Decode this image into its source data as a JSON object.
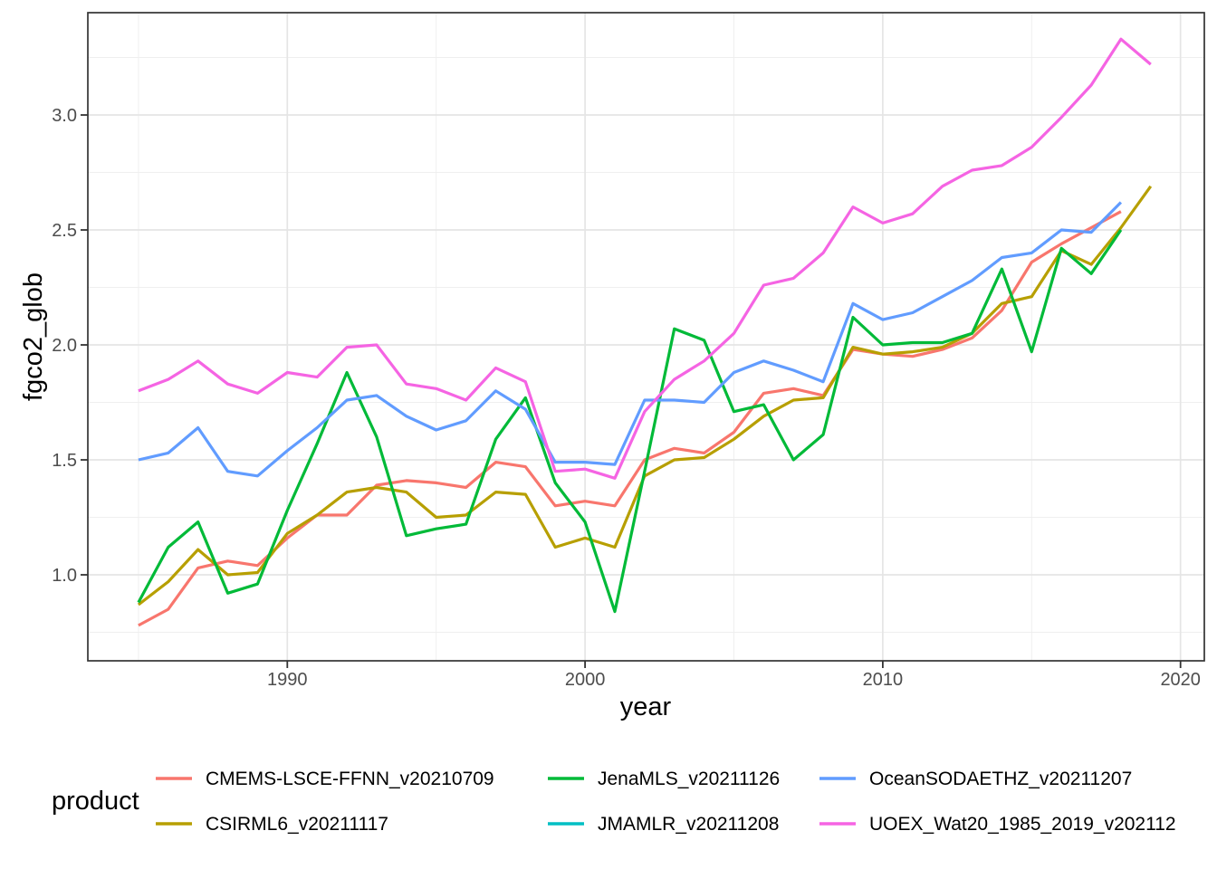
{
  "page": {
    "background": "#ffffff"
  },
  "legend": {
    "title": "product",
    "position": "bottom",
    "columns": 3
  },
  "chart_data": {
    "type": "line",
    "title": "",
    "xlabel": "year",
    "ylabel": "fgco2_glob",
    "x_range": [
      1983.3,
      2020.8
    ],
    "y_range": [
      0.626,
      3.445
    ],
    "x_major_ticks": [
      1990,
      2000,
      2010,
      2020
    ],
    "x_minor_gridlines": [
      1985,
      1995,
      2005,
      2015
    ],
    "y_major_ticks": [
      1.0,
      1.5,
      2.0,
      2.5,
      3.0
    ],
    "y_minor_gridlines": [
      0.75,
      1.25,
      1.75,
      2.25,
      2.75,
      3.25
    ],
    "grid": true,
    "panel_border_color": "#333333",
    "major_grid_color": "#e5e5e5",
    "minor_grid_color": "#efefef",
    "years": [
      1985,
      1986,
      1987,
      1988,
      1989,
      1990,
      1991,
      1992,
      1993,
      1994,
      1995,
      1996,
      1997,
      1998,
      1999,
      2000,
      2001,
      2002,
      2003,
      2004,
      2005,
      2006,
      2007,
      2008,
      2009,
      2010,
      2011,
      2012,
      2013,
      2014,
      2015,
      2016,
      2017,
      2018,
      2019
    ],
    "series": [
      {
        "name": "CMEMS-LSCE-FFNN_v20210709",
        "color": "#F8766D",
        "values": [
          0.78,
          0.85,
          1.03,
          1.06,
          1.04,
          1.16,
          1.26,
          1.26,
          1.39,
          1.41,
          1.4,
          1.38,
          1.49,
          1.47,
          1.3,
          1.32,
          1.3,
          1.5,
          1.55,
          1.53,
          1.62,
          1.79,
          1.81,
          1.78,
          1.98,
          1.96,
          1.95,
          1.98,
          2.03,
          2.15,
          2.36,
          2.44,
          2.51,
          2.58,
          null
        ]
      },
      {
        "name": "CSIRML6_v20211117",
        "color": "#B79F00",
        "values": [
          0.87,
          0.97,
          1.11,
          1.0,
          1.01,
          1.18,
          1.26,
          1.36,
          1.38,
          1.36,
          1.25,
          1.26,
          1.36,
          1.35,
          1.12,
          1.16,
          1.12,
          1.43,
          1.5,
          1.51,
          1.59,
          1.69,
          1.76,
          1.77,
          1.99,
          1.96,
          1.97,
          1.99,
          2.05,
          2.18,
          2.21,
          2.41,
          2.35,
          2.51,
          2.69
        ]
      },
      {
        "name": "JenaMLS_v20211126",
        "color": "#00BA38",
        "values": [
          0.88,
          1.12,
          1.23,
          0.92,
          0.96,
          1.28,
          1.57,
          1.88,
          1.6,
          1.17,
          1.2,
          1.22,
          1.59,
          1.77,
          1.4,
          1.23,
          0.84,
          1.45,
          2.07,
          2.02,
          1.71,
          1.74,
          1.5,
          1.61,
          2.12,
          2.0,
          2.01,
          2.01,
          2.05,
          2.33,
          1.97,
          2.42,
          2.31,
          2.5,
          null
        ]
      },
      {
        "name": "JMAMLR_v20211208",
        "color": "#00BFC4",
        "values": []
      },
      {
        "name": "OceanSODAETHZ_v20211207",
        "color": "#619CFF",
        "values": [
          1.5,
          1.53,
          1.64,
          1.45,
          1.43,
          1.54,
          1.64,
          1.76,
          1.78,
          1.69,
          1.63,
          1.67,
          1.8,
          1.72,
          1.49,
          1.49,
          1.48,
          1.76,
          1.76,
          1.75,
          1.88,
          1.93,
          1.89,
          1.84,
          2.18,
          2.11,
          2.14,
          2.21,
          2.28,
          2.38,
          2.4,
          2.5,
          2.49,
          2.62,
          null
        ]
      },
      {
        "name": "UOEX_Wat20_1985_2019_v202112",
        "color": "#F564E3",
        "values": [
          1.8,
          1.85,
          1.93,
          1.83,
          1.79,
          1.88,
          1.86,
          1.99,
          2.0,
          1.83,
          1.81,
          1.76,
          1.9,
          1.84,
          1.45,
          1.46,
          1.42,
          1.71,
          1.85,
          1.93,
          2.05,
          2.26,
          2.29,
          2.4,
          2.6,
          2.53,
          2.57,
          2.69,
          2.76,
          2.78,
          2.86,
          2.99,
          3.13,
          3.33,
          3.22
        ]
      }
    ]
  }
}
